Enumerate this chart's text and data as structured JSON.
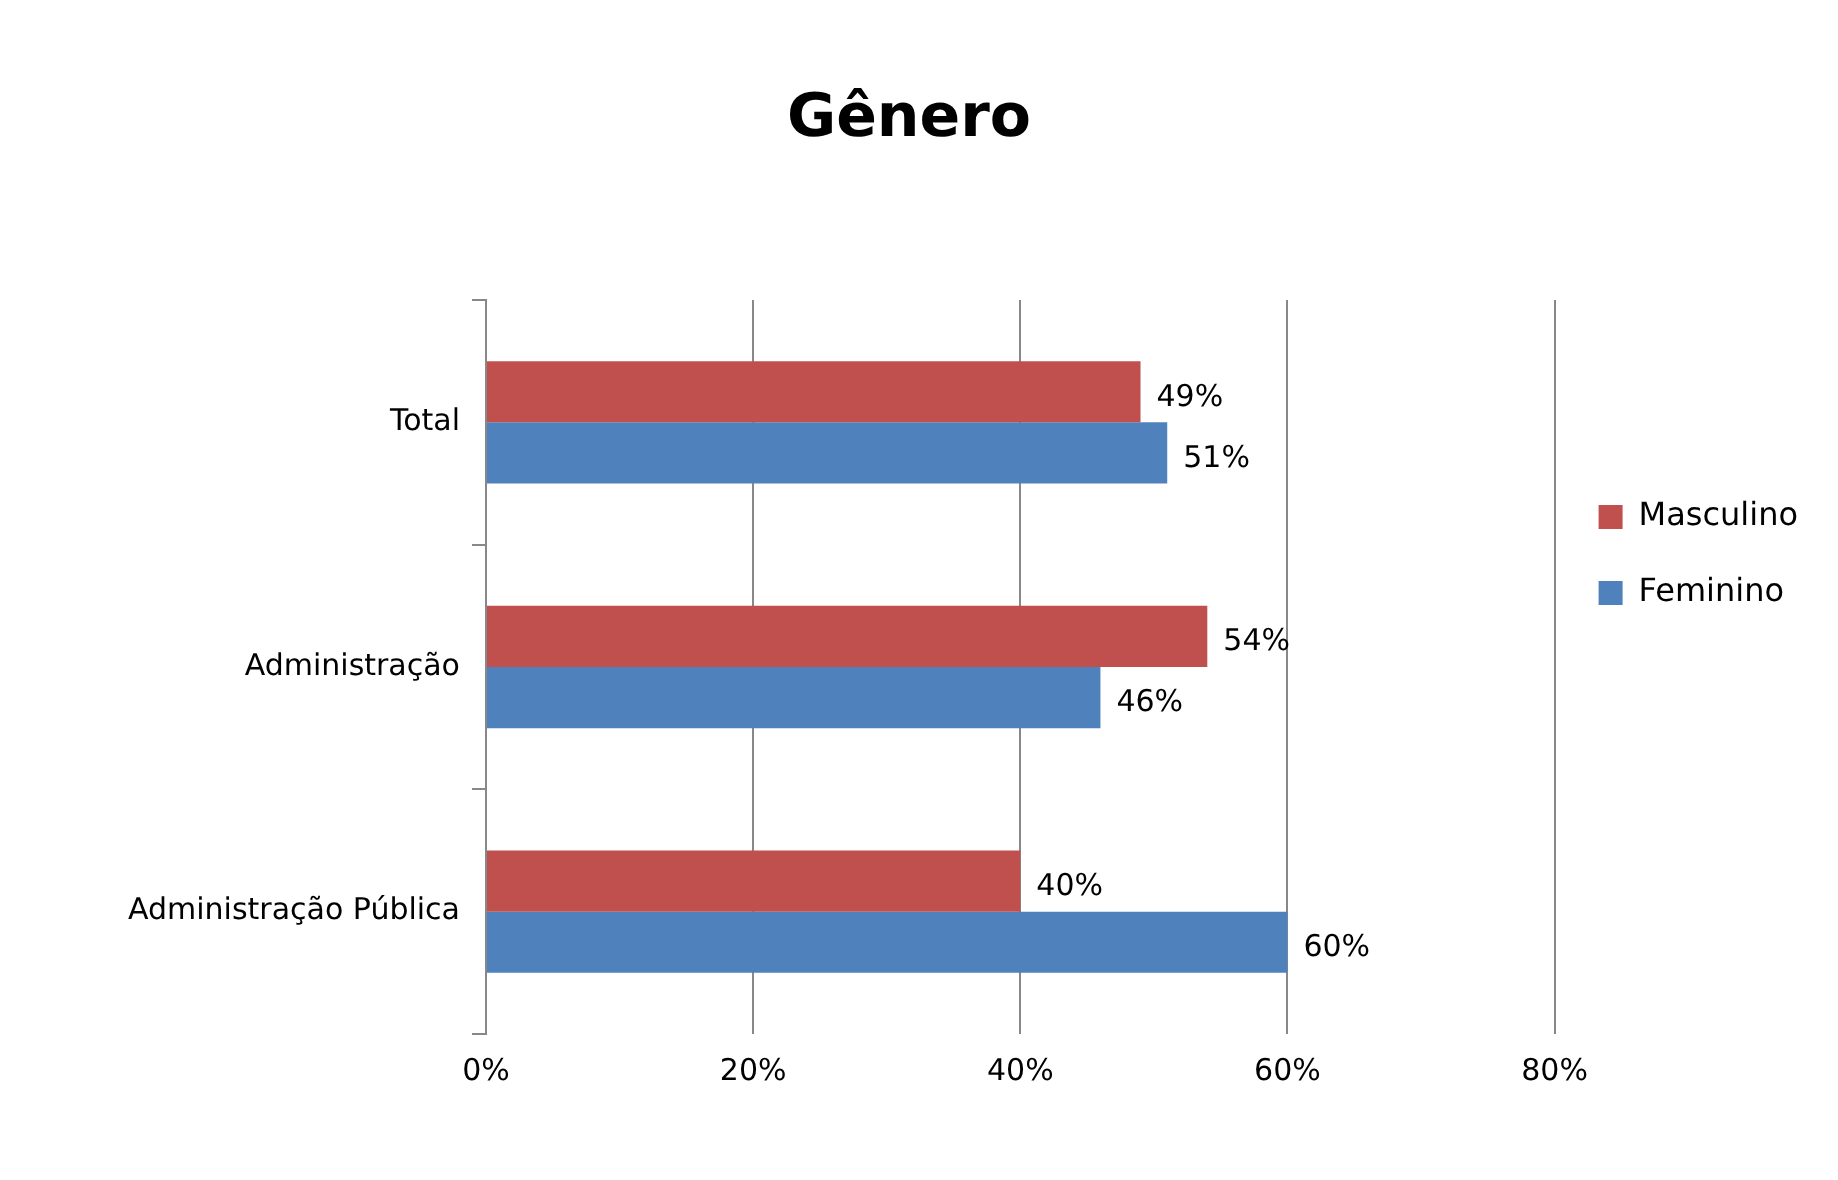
{
  "chart_data": {
    "type": "bar",
    "orientation": "horizontal",
    "title": "Gênero",
    "categories": [
      "Total",
      "Administração",
      "Administração Pública"
    ],
    "series": [
      {
        "name": "Masculino",
        "color": "#c0504d",
        "values": [
          49,
          54,
          40
        ],
        "value_labels": [
          "49%",
          "54%",
          "40%"
        ]
      },
      {
        "name": "Feminino",
        "color": "#4f81bd",
        "values": [
          51,
          46,
          60
        ],
        "value_labels": [
          "51%",
          "46%",
          "60%"
        ]
      }
    ],
    "xlim": [
      0,
      80
    ],
    "xticks": [
      {
        "value": 0,
        "label": "0%"
      },
      {
        "value": 20,
        "label": "20%"
      },
      {
        "value": 40,
        "label": "40%"
      },
      {
        "value": 60,
        "label": "60%"
      },
      {
        "value": 80,
        "label": "80%"
      }
    ],
    "grid": "x",
    "legend": "right"
  }
}
